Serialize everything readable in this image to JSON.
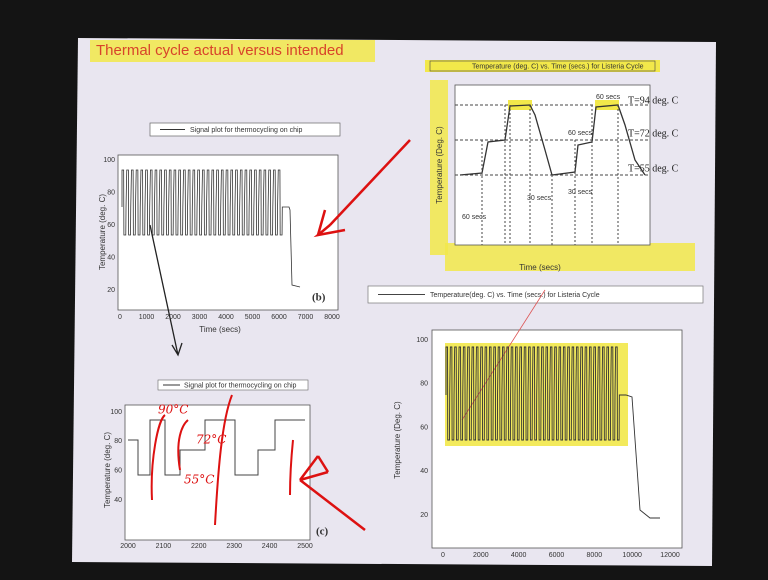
{
  "slide": {
    "title": "Thermal cycle actual versus intended"
  },
  "panel_b": {
    "legend": "Signal plot for thermocycling on chip",
    "y_label": "Temperature (deg. C)",
    "x_label": "Time (secs)",
    "yticks": [
      "100",
      "80",
      "60",
      "40",
      "20"
    ],
    "xticks": [
      "0",
      "1000",
      "2000",
      "3000",
      "4000",
      "5000",
      "6000",
      "7000",
      "8000"
    ],
    "label": "(b)"
  },
  "panel_c": {
    "legend": "Signal plot for thermocycling on chip",
    "y_label": "Temperature (deg. C)",
    "yticks": [
      "100",
      "80",
      "60",
      "40"
    ],
    "xticks": [
      "2000",
      "2100",
      "2200",
      "2300",
      "2400",
      "2500"
    ],
    "label": "(c)",
    "notes": [
      "90°C",
      "72°C",
      "55°C"
    ]
  },
  "panel_top": {
    "legend": "Temperature (deg. C) vs. Time (secs.) for Listeria Cycle",
    "y_label": "Temperature (Deg. C)",
    "x_label": "Time (secs)",
    "levels": [
      "T=94 deg. C",
      "T=72 deg. C",
      "T=55 deg. C"
    ],
    "durations": [
      "60 secs",
      "30 secs",
      "60 secs",
      "60 secs",
      "30 secs"
    ]
  },
  "panel_main": {
    "legend": "Temperature(deg. C) vs. Time (secs.) for Listeria Cycle",
    "y_label": "Temperature (Deg. C)",
    "yticks": [
      "100",
      "80",
      "60",
      "40",
      "20"
    ],
    "xticks": [
      "0",
      "2000",
      "4000",
      "6000",
      "8000",
      "10000",
      "12000"
    ]
  }
}
